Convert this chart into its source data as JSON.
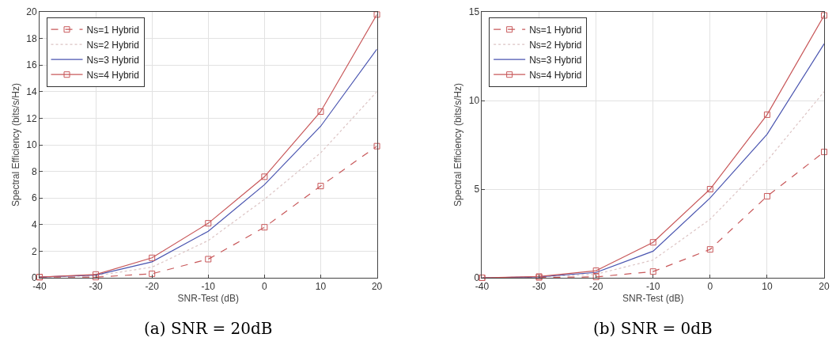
{
  "chart_data": [
    {
      "type": "line",
      "title": "(a) SNR = 20dB",
      "xlabel": "SNR-Test (dB)",
      "ylabel": "Spectral Efficiency (bits/s/Hz)",
      "x": [
        -40,
        -30,
        -20,
        -10,
        0,
        10,
        20
      ],
      "xlim": [
        -40,
        20
      ],
      "xticks": [
        -40,
        -30,
        -20,
        -10,
        0,
        10,
        20
      ],
      "ylim": [
        0,
        20
      ],
      "yticks": [
        0,
        2,
        4,
        6,
        8,
        10,
        12,
        14,
        16,
        18,
        20
      ],
      "grid": true,
      "legend": "top left",
      "series": [
        {
          "name": "Ns=1 Hybrid",
          "color": "#c8585a",
          "marker": "square",
          "line_style": "dashed",
          "values": [
            0.05,
            0.05,
            0.3,
            1.4,
            3.8,
            6.9,
            9.9
          ]
        },
        {
          "name": "Ns=2 Hybrid",
          "color": "#dcc4c4",
          "marker": "none",
          "line_style": "dotted",
          "values": [
            0.05,
            0.15,
            0.8,
            2.8,
            5.9,
            9.4,
            14.0
          ]
        },
        {
          "name": "Ns=3 Hybrid",
          "color": "#4a55b0",
          "marker": "none",
          "line_style": "solid",
          "values": [
            0.05,
            0.2,
            1.2,
            3.5,
            7.0,
            11.4,
            17.2
          ]
        },
        {
          "name": "Ns=4 Hybrid",
          "color": "#c8585a",
          "marker": "square",
          "line_style": "solid",
          "values": [
            0.05,
            0.25,
            1.5,
            4.1,
            7.6,
            12.5,
            19.8
          ]
        }
      ]
    },
    {
      "type": "line",
      "title": "(b) SNR = 0dB",
      "xlabel": "SNR-Test (dB)",
      "ylabel": "Spectral Efficiency (bits/s/Hz)",
      "x": [
        -40,
        -30,
        -20,
        -10,
        0,
        10,
        20
      ],
      "xlim": [
        -40,
        20
      ],
      "xticks": [
        -40,
        -30,
        -20,
        -10,
        0,
        10,
        20
      ],
      "ylim": [
        0,
        15
      ],
      "yticks": [
        0,
        5,
        10,
        15
      ],
      "grid": true,
      "legend": "top left",
      "series": [
        {
          "name": "Ns=1 Hybrid",
          "color": "#c8585a",
          "marker": "square",
          "line_style": "dashed",
          "values": [
            0,
            0.02,
            0.05,
            0.35,
            1.6,
            4.6,
            7.1
          ]
        },
        {
          "name": "Ns=2 Hybrid",
          "color": "#dcc4c4",
          "marker": "none",
          "line_style": "dotted",
          "values": [
            0,
            0.05,
            0.2,
            1.0,
            3.3,
            6.6,
            10.5
          ]
        },
        {
          "name": "Ns=3 Hybrid",
          "color": "#4a55b0",
          "marker": "none",
          "line_style": "solid",
          "values": [
            0,
            0.05,
            0.3,
            1.5,
            4.5,
            8.1,
            13.2
          ]
        },
        {
          "name": "Ns=4 Hybrid",
          "color": "#c8585a",
          "marker": "square",
          "line_style": "solid",
          "values": [
            0,
            0.07,
            0.4,
            2.0,
            5.0,
            9.2,
            14.8
          ]
        }
      ]
    }
  ]
}
